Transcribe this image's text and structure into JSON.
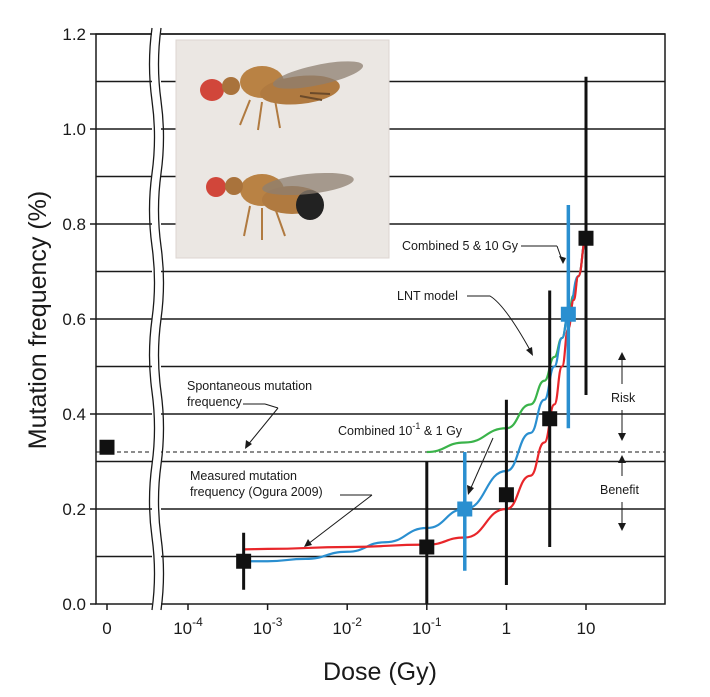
{
  "chart_data": {
    "type": "scatter",
    "title": "",
    "xlabel": "Dose (Gy)",
    "ylabel": "Mutation frequency (%)",
    "x_scale": "log (with axis break; 0 shown separately)",
    "ylim": [
      0.0,
      1.2
    ],
    "y_ticks": [
      "0.0",
      "0.2",
      "0.4",
      "0.6",
      "0.8",
      "1.0",
      "1.2"
    ],
    "x_ticks": [
      {
        "value": 0,
        "base": "0",
        "exp": ""
      },
      {
        "value": 0.0001,
        "base": "10",
        "exp": "-4"
      },
      {
        "value": 0.001,
        "base": "10",
        "exp": "-3"
      },
      {
        "value": 0.01,
        "base": "10",
        "exp": "-2"
      },
      {
        "value": 0.1,
        "base": "10",
        "exp": "-1"
      },
      {
        "value": 1,
        "base": "1",
        "exp": ""
      },
      {
        "value": 10,
        "base": "10",
        "exp": ""
      }
    ],
    "grid": "horizontal lines every 0.1",
    "spontaneous_frequency": 0.32,
    "measured_points": [
      {
        "dose": 0,
        "freq": 0.33
      },
      {
        "dose": 0.0005,
        "freq": 0.09,
        "err_low": 0.03,
        "err_high": 0.15
      },
      {
        "dose": 0.1,
        "freq": 0.12,
        "err_low": 0.0,
        "err_high": 0.3
      },
      {
        "dose": 1,
        "freq": 0.23,
        "err_low": 0.04,
        "err_high": 0.43
      },
      {
        "dose": 3.5,
        "freq": 0.39,
        "err_low": 0.12,
        "err_high": 0.66
      },
      {
        "dose": 10,
        "freq": 0.77,
        "err_low": 0.44,
        "err_high": 1.11
      }
    ],
    "combined_points": [
      {
        "label": "Combined 10⁻¹ & 1 Gy",
        "dose": 0.3,
        "freq": 0.2,
        "err_low": 0.07,
        "err_high": 0.32
      },
      {
        "label": "Combined 5 & 10 Gy",
        "dose": 6,
        "freq": 0.61,
        "err_low": 0.37,
        "err_high": 0.84
      }
    ],
    "series": [
      {
        "name": "LNT model",
        "color": "#3ab34a",
        "x": [
          0.1,
          0.3,
          1,
          2,
          3,
          4,
          5,
          6,
          7,
          8,
          10
        ],
        "y": [
          0.32,
          0.34,
          0.37,
          0.42,
          0.47,
          0.52,
          0.56,
          0.61,
          0.65,
          0.69,
          0.77
        ]
      },
      {
        "name": "",
        "color": "#2a8fd0",
        "x": [
          0.0005,
          0.001,
          0.003,
          0.01,
          0.03,
          0.1,
          0.3,
          1,
          2,
          3,
          4,
          5,
          6,
          8,
          10
        ],
        "y": [
          0.09,
          0.09,
          0.095,
          0.11,
          0.13,
          0.16,
          0.2,
          0.28,
          0.36,
          0.43,
          0.5,
          0.56,
          0.61,
          0.69,
          0.77
        ]
      },
      {
        "name": "",
        "color": "#e8262a",
        "x": [
          0.0005,
          0.001,
          0.01,
          0.1,
          0.3,
          1,
          2,
          3,
          4,
          5,
          6,
          7,
          8,
          10
        ],
        "y": [
          0.115,
          0.116,
          0.12,
          0.125,
          0.14,
          0.2,
          0.27,
          0.34,
          0.42,
          0.5,
          0.58,
          0.64,
          0.69,
          0.77
        ]
      }
    ],
    "annotations": {
      "lnt": "LNT model",
      "combined_high": "Combined 5 & 10 Gy",
      "combined_low_base": "Combined 10",
      "combined_low_exp": "-1",
      "combined_low_tail": " & 1 Gy",
      "spont_line1": "Spontaneous mutation",
      "spont_line2": "frequency",
      "measured_line1": "Measured mutation",
      "measured_line2": "frequency (Ogura 2009)",
      "risk": "Risk",
      "benefit": "Benefit"
    },
    "inset_image": "two fruit flies photograph"
  }
}
